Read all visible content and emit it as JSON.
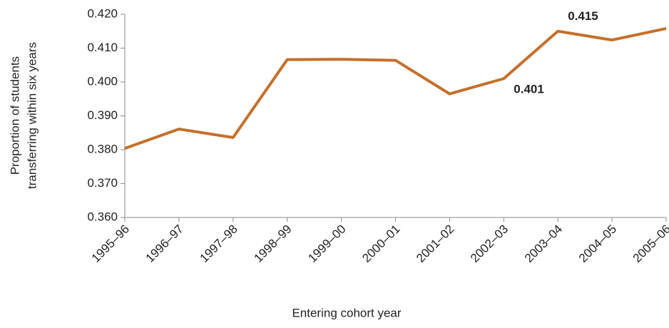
{
  "chart_data": {
    "type": "line",
    "x_label": "Entering cohort year",
    "y_label": [
      "Proportion of students",
      "transferring within six years"
    ],
    "categories": [
      "1995–96",
      "1996–97",
      "1997–98",
      "1998–99",
      "1999–00",
      "2000–01",
      "2001–02",
      "2002–03",
      "2003–04",
      "2004–05",
      "2005–06"
    ],
    "values": [
      0.3804,
      0.3861,
      0.3836,
      0.4066,
      0.4067,
      0.4064,
      0.3965,
      0.401,
      0.415,
      0.4124,
      0.4158
    ],
    "value_labels": [
      null,
      null,
      null,
      null,
      null,
      null,
      null,
      "0.401",
      "0.415",
      null,
      null
    ],
    "color": "#c5702b",
    "ylim": [
      0.36,
      0.42
    ],
    "yticks": [
      {
        "value": 0.36,
        "label": "0.360"
      },
      {
        "value": 0.37,
        "label": "0.370"
      },
      {
        "value": 0.38,
        "label": "0.380"
      },
      {
        "value": 0.39,
        "label": "0.390"
      },
      {
        "value": 0.4,
        "label": "0.400"
      },
      {
        "value": 0.41,
        "label": "0.410"
      },
      {
        "value": 0.42,
        "label": "0.420"
      }
    ]
  }
}
